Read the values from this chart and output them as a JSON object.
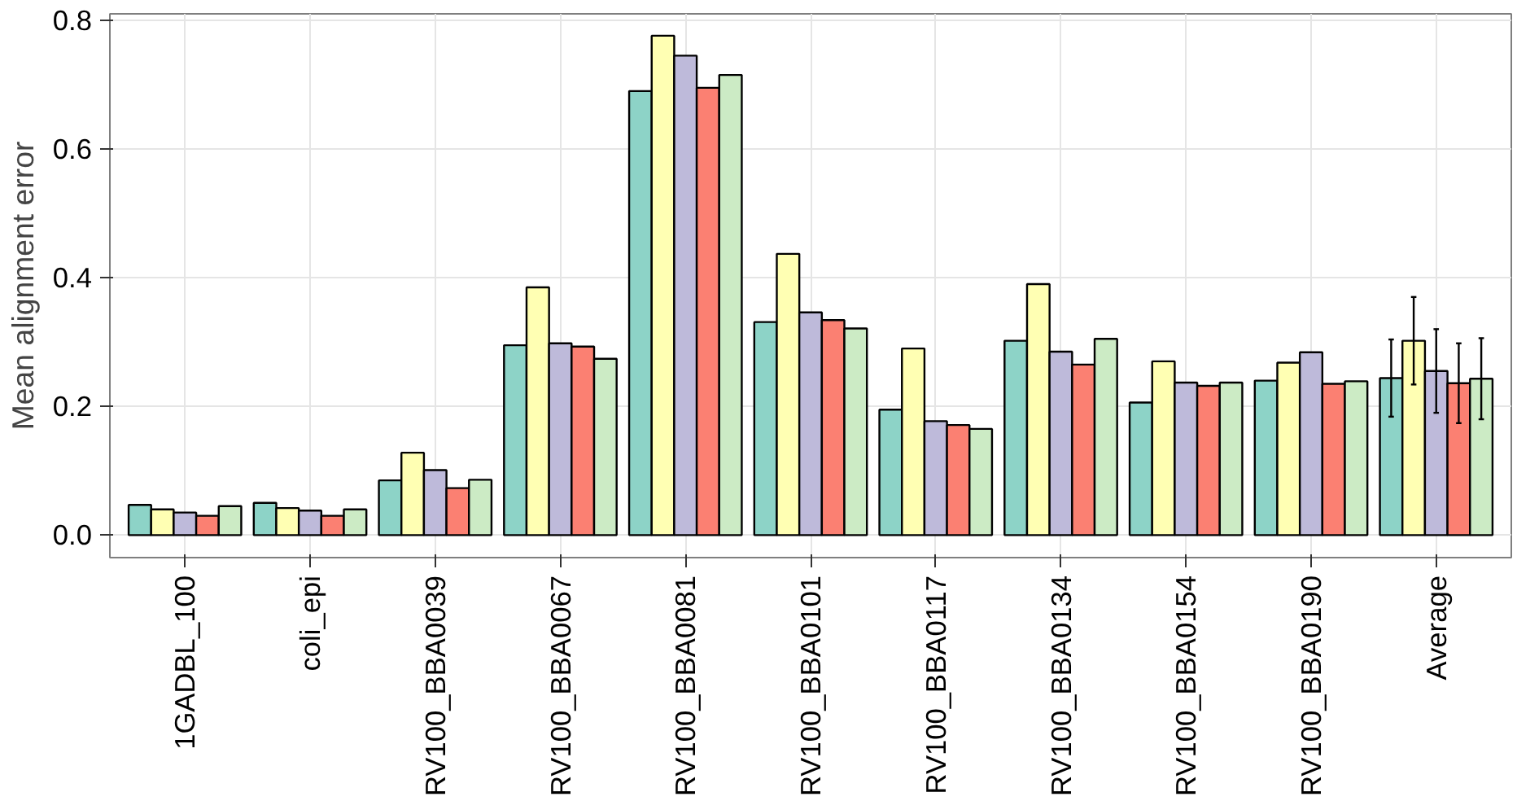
{
  "chart_data": {
    "type": "bar",
    "ylabel": "Mean alignment error",
    "categories": [
      "1GADBL_100",
      "coli_epi",
      "RV100_BBA0039",
      "RV100_BBA0067",
      "RV100_BBA0081",
      "RV100_BBA0101",
      "RV100_BBA0117",
      "RV100_BBA0134",
      "RV100_BBA0154",
      "RV100_BBA0190",
      "Average"
    ],
    "series": [
      {
        "color": "#8dd3c7",
        "values": [
          0.047,
          0.05,
          0.085,
          0.295,
          0.69,
          0.331,
          0.195,
          0.302,
          0.206,
          0.24,
          0.244
        ],
        "errors": [
          null,
          null,
          null,
          null,
          null,
          null,
          null,
          null,
          null,
          null,
          0.06
        ]
      },
      {
        "color": "#ffffb3",
        "values": [
          0.04,
          0.042,
          0.128,
          0.385,
          0.776,
          0.437,
          0.29,
          0.39,
          0.27,
          0.268,
          0.302
        ],
        "errors": [
          null,
          null,
          null,
          null,
          null,
          null,
          null,
          null,
          null,
          null,
          0.068
        ]
      },
      {
        "color": "#bebada",
        "values": [
          0.035,
          0.038,
          0.101,
          0.298,
          0.745,
          0.346,
          0.177,
          0.285,
          0.237,
          0.284,
          0.255
        ],
        "errors": [
          null,
          null,
          null,
          null,
          null,
          null,
          null,
          null,
          null,
          null,
          0.065
        ]
      },
      {
        "color": "#fb8072",
        "values": [
          0.03,
          0.03,
          0.073,
          0.293,
          0.695,
          0.334,
          0.171,
          0.265,
          0.232,
          0.235,
          0.236
        ],
        "errors": [
          null,
          null,
          null,
          null,
          null,
          null,
          null,
          null,
          null,
          null,
          0.062
        ]
      },
      {
        "color": "#ccebc5",
        "values": [
          0.045,
          0.04,
          0.086,
          0.274,
          0.715,
          0.321,
          0.165,
          0.305,
          0.237,
          0.239,
          0.243
        ],
        "errors": [
          null,
          null,
          null,
          null,
          null,
          null,
          null,
          null,
          null,
          null,
          0.063
        ]
      }
    ],
    "ylim": [
      -0.035,
      0.81
    ],
    "yticks": [
      {
        "value": 0,
        "label": "0.0"
      },
      0.2,
      0.4,
      0.6,
      0.8
    ],
    "grid": true
  }
}
